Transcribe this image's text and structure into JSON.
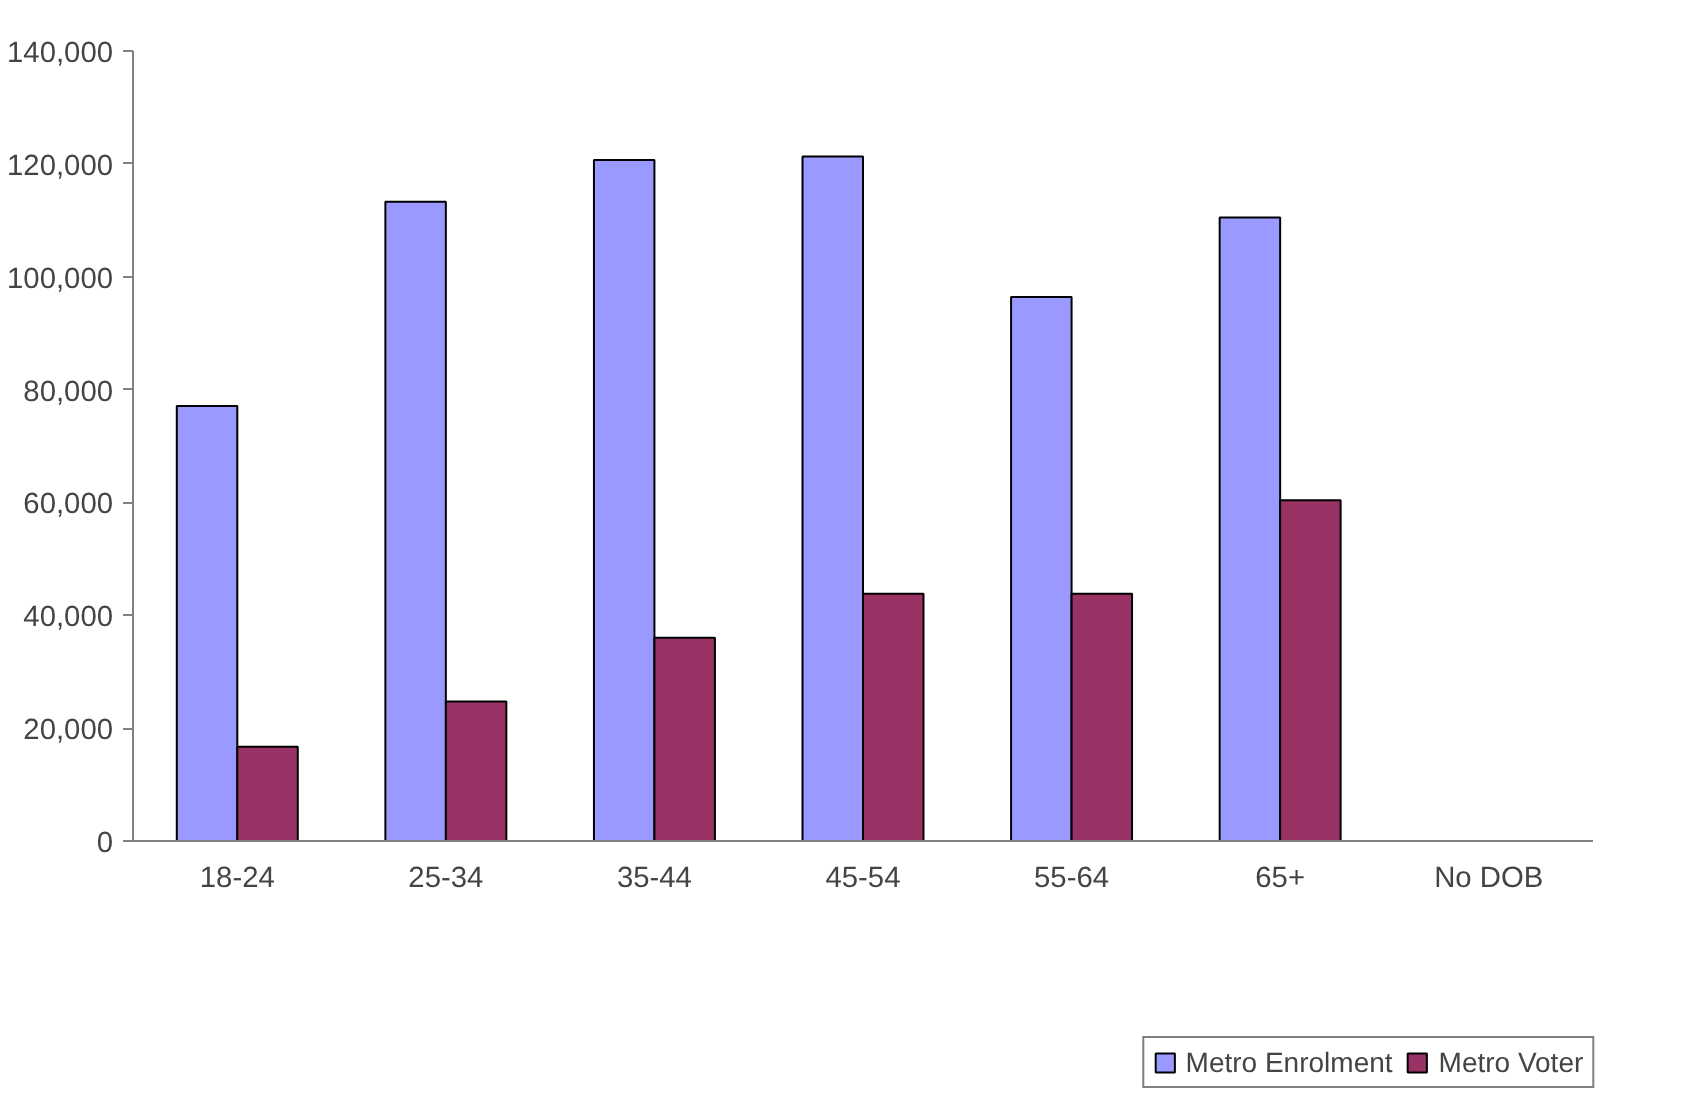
{
  "chart_data": {
    "type": "bar",
    "categories": [
      "18-24",
      "25-34",
      "35-44",
      "45-54",
      "55-64",
      "65+",
      "No DOB"
    ],
    "series": [
      {
        "name": "Metro Enrolment",
        "color": "#9999ff",
        "values": [
          77100,
          113300,
          120700,
          121300,
          96400,
          110500,
          null
        ]
      },
      {
        "name": "Metro Voter",
        "color": "#993366",
        "values": [
          16700,
          24700,
          36000,
          43800,
          43800,
          60400,
          null
        ]
      }
    ],
    "ylim": [
      0,
      140000
    ],
    "yticks": [
      {
        "value": 0,
        "label": "0"
      },
      {
        "value": 20000,
        "label": "20,000"
      },
      {
        "value": 40000,
        "label": "40,000"
      },
      {
        "value": 60000,
        "label": "60,000"
      },
      {
        "value": 80000,
        "label": "80,000"
      },
      {
        "value": 100000,
        "label": "100,000"
      },
      {
        "value": 120000,
        "label": "120,000"
      },
      {
        "value": 140000,
        "label": "140,000"
      }
    ],
    "grid": false,
    "legend": "bottom"
  }
}
